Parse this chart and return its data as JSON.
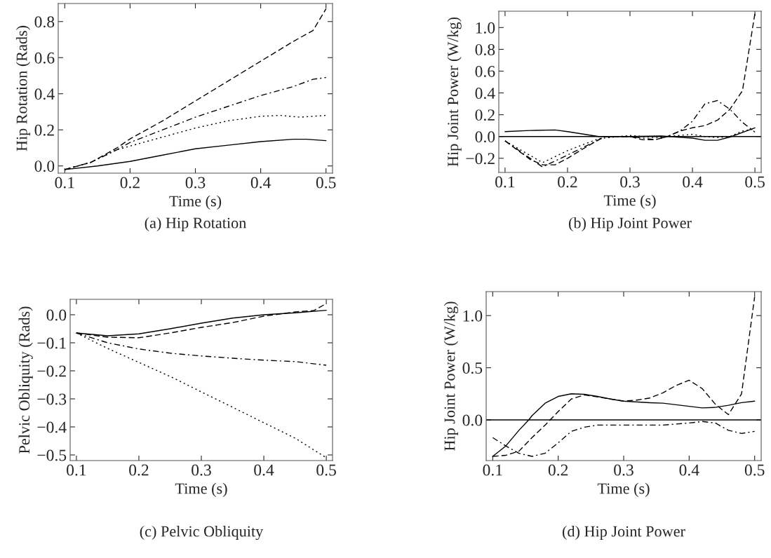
{
  "chart_data": [
    {
      "type": "line",
      "xlabel": "Time (s)",
      "ylabel": "Hip Rotation (Rads)",
      "annotations": [
        "(a) Hip Rotation"
      ],
      "xlim": [
        0.09,
        0.51
      ],
      "xticks": [
        0.1,
        0.2,
        0.3,
        0.4,
        0.5
      ],
      "ylim": [
        -0.04,
        0.9
      ],
      "yticks": [
        {
          "value": 0,
          "label": "0.0"
        },
        0.2,
        0.4,
        0.6,
        0.8
      ],
      "grid": false,
      "legend": false,
      "series": [
        {
          "color": "#000000",
          "line_style": "solid",
          "x": [
            0.1,
            0.15,
            0.2,
            0.25,
            0.3,
            0.35,
            0.4,
            0.45,
            0.47,
            0.5
          ],
          "values": [
            -0.02,
            0.0,
            0.025,
            0.06,
            0.095,
            0.115,
            0.135,
            0.148,
            0.148,
            0.14
          ]
        },
        {
          "color": "#000000",
          "line_style": "dashed",
          "x": [
            0.1,
            0.14,
            0.18,
            0.2,
            0.25,
            0.3,
            0.35,
            0.4,
            0.45,
            0.48,
            0.5
          ],
          "values": [
            -0.02,
            0.02,
            0.1,
            0.15,
            0.25,
            0.36,
            0.47,
            0.58,
            0.69,
            0.75,
            0.87
          ]
        },
        {
          "color": "#000000",
          "line_style": "dashdot",
          "x": [
            0.1,
            0.14,
            0.18,
            0.2,
            0.25,
            0.3,
            0.35,
            0.4,
            0.45,
            0.48,
            0.5
          ],
          "values": [
            -0.02,
            0.02,
            0.09,
            0.13,
            0.2,
            0.27,
            0.33,
            0.39,
            0.44,
            0.48,
            0.49
          ]
        },
        {
          "color": "#000000",
          "line_style": "dotted",
          "x": [
            0.1,
            0.14,
            0.18,
            0.2,
            0.25,
            0.3,
            0.35,
            0.4,
            0.43,
            0.46,
            0.5
          ],
          "values": [
            -0.02,
            0.02,
            0.09,
            0.11,
            0.16,
            0.21,
            0.25,
            0.275,
            0.28,
            0.27,
            0.28
          ]
        }
      ]
    },
    {
      "type": "line",
      "xlabel": "Time (s)",
      "ylabel": "Hip Joint Power (W/kg)",
      "annotations": [
        "(b) Hip Joint Power"
      ],
      "xlim": [
        0.09,
        0.51
      ],
      "xticks": [
        0.1,
        0.2,
        0.3,
        0.4,
        0.5
      ],
      "ylim": [
        -0.33,
        1.15
      ],
      "yticks": [
        {
          "value": -0.2,
          "label": "−0.2"
        },
        {
          "value": 0,
          "label": "0.0"
        },
        0.2,
        0.4,
        0.6,
        0.8,
        {
          "value": 1,
          "label": "1.0"
        }
      ],
      "grid": false,
      "legend": false,
      "ref_lines": [
        {
          "axis": "y",
          "value": 0.0,
          "color": "#000000",
          "line_style": "solid"
        }
      ],
      "series": [
        {
          "color": "#000000",
          "line_style": "solid",
          "x": [
            0.1,
            0.14,
            0.18,
            0.2,
            0.25,
            0.3,
            0.35,
            0.4,
            0.42,
            0.44,
            0.46,
            0.5
          ],
          "values": [
            0.045,
            0.055,
            0.06,
            0.045,
            0.0,
            0.0,
            0.005,
            -0.015,
            -0.035,
            -0.035,
            -0.005,
            0.08
          ]
        },
        {
          "color": "#000000",
          "line_style": "dashed",
          "x": [
            0.1,
            0.14,
            0.16,
            0.18,
            0.2,
            0.22,
            0.25,
            0.26,
            0.3,
            0.32,
            0.34,
            0.36,
            0.38,
            0.4,
            0.42,
            0.44,
            0.46,
            0.48,
            0.5
          ],
          "values": [
            -0.04,
            -0.21,
            -0.26,
            -0.26,
            -0.2,
            -0.13,
            -0.03,
            0.0,
            0.0,
            -0.03,
            -0.03,
            0.0,
            0.05,
            0.08,
            0.1,
            0.15,
            0.25,
            0.42,
            1.13
          ]
        },
        {
          "color": "#000000",
          "line_style": "dashdot",
          "x": [
            0.1,
            0.16,
            0.2,
            0.25,
            0.26,
            0.3,
            0.34,
            0.36,
            0.38,
            0.4,
            0.42,
            0.44,
            0.46,
            0.48,
            0.5
          ],
          "values": [
            -0.04,
            -0.28,
            -0.17,
            -0.03,
            0.0,
            0.0,
            -0.03,
            0.0,
            0.05,
            0.14,
            0.3,
            0.33,
            0.25,
            0.13,
            0.04
          ]
        },
        {
          "color": "#000000",
          "line_style": "dotted",
          "x": [
            0.1,
            0.16,
            0.2,
            0.25,
            0.3,
            0.34,
            0.36,
            0.4,
            0.42,
            0.44,
            0.46,
            0.48,
            0.5
          ],
          "values": [
            -0.04,
            -0.24,
            -0.13,
            -0.02,
            0.01,
            -0.01,
            0.0,
            0.02,
            0.0,
            -0.01,
            0.0,
            0.05,
            0.07
          ]
        }
      ]
    },
    {
      "type": "line",
      "xlabel": "Time (s)",
      "ylabel": "Pelvic Obliquity (Rads)",
      "annotations": [
        "(c) Pelvic Obliquity"
      ],
      "xlim": [
        0.09,
        0.51
      ],
      "xticks": [
        0.1,
        0.2,
        0.3,
        0.4,
        0.5
      ],
      "ylim": [
        -0.52,
        0.055
      ],
      "yticks": [
        {
          "value": -0.5,
          "label": "−0.5"
        },
        {
          "value": -0.4,
          "label": "−0.4"
        },
        {
          "value": -0.3,
          "label": "−0.3"
        },
        {
          "value": -0.2,
          "label": "−0.2"
        },
        {
          "value": -0.1,
          "label": "−0.1"
        },
        {
          "value": 0,
          "label": "0.0"
        }
      ],
      "grid": false,
      "legend": false,
      "series": [
        {
          "color": "#000000",
          "line_style": "solid",
          "x": [
            0.1,
            0.15,
            0.2,
            0.25,
            0.3,
            0.35,
            0.4,
            0.45,
            0.5
          ],
          "values": [
            -0.065,
            -0.075,
            -0.068,
            -0.05,
            -0.03,
            -0.012,
            0.0,
            0.007,
            0.016
          ]
        },
        {
          "color": "#000000",
          "line_style": "dashed",
          "x": [
            0.1,
            0.15,
            0.2,
            0.25,
            0.3,
            0.35,
            0.4,
            0.45,
            0.48,
            0.5
          ],
          "values": [
            -0.065,
            -0.08,
            -0.082,
            -0.065,
            -0.045,
            -0.028,
            -0.005,
            0.01,
            0.015,
            0.04
          ]
        },
        {
          "color": "#000000",
          "line_style": "dashdot",
          "x": [
            0.1,
            0.15,
            0.2,
            0.25,
            0.3,
            0.35,
            0.4,
            0.45,
            0.5
          ],
          "values": [
            -0.065,
            -0.1,
            -0.122,
            -0.137,
            -0.147,
            -0.155,
            -0.162,
            -0.167,
            -0.18
          ]
        },
        {
          "color": "#000000",
          "line_style": "dotted",
          "x": [
            0.1,
            0.15,
            0.2,
            0.25,
            0.3,
            0.35,
            0.4,
            0.45,
            0.5
          ],
          "values": [
            -0.065,
            -0.12,
            -0.17,
            -0.22,
            -0.275,
            -0.33,
            -0.385,
            -0.44,
            -0.51
          ]
        }
      ]
    },
    {
      "type": "line",
      "xlabel": "Time (s)",
      "ylabel": "Hip Joint Power (W/kg)",
      "annotations": [
        "(d) Hip Joint Power"
      ],
      "xlim": [
        0.09,
        0.51
      ],
      "xticks": [
        0.1,
        0.2,
        0.3,
        0.4,
        0.5
      ],
      "ylim": [
        -0.39,
        1.23
      ],
      "yticks": [
        {
          "value": 0,
          "label": "0.0"
        },
        0.5,
        {
          "value": 1,
          "label": "1.0"
        }
      ],
      "grid": false,
      "legend": false,
      "ref_lines": [
        {
          "axis": "y",
          "value": 0.0,
          "color": "#000000",
          "line_style": "solid"
        }
      ],
      "series": [
        {
          "color": "#000000",
          "line_style": "solid",
          "x": [
            0.1,
            0.12,
            0.14,
            0.155,
            0.16,
            0.18,
            0.2,
            0.22,
            0.24,
            0.26,
            0.28,
            0.3,
            0.34,
            0.36,
            0.4,
            0.42,
            0.44,
            0.46,
            0.48,
            0.5
          ],
          "values": [
            -0.35,
            -0.25,
            -0.1,
            0.0,
            0.04,
            0.16,
            0.225,
            0.25,
            0.245,
            0.225,
            0.2,
            0.18,
            0.165,
            0.16,
            0.13,
            0.115,
            0.12,
            0.14,
            0.165,
            0.18
          ]
        },
        {
          "color": "#000000",
          "line_style": "dashed",
          "x": [
            0.1,
            0.12,
            0.14,
            0.16,
            0.18,
            0.2,
            0.22,
            0.24,
            0.28,
            0.3,
            0.32,
            0.34,
            0.36,
            0.38,
            0.4,
            0.42,
            0.44,
            0.46,
            0.48,
            0.5
          ],
          "values": [
            -0.35,
            -0.34,
            -0.3,
            -0.17,
            -0.05,
            0.08,
            0.2,
            0.24,
            0.2,
            0.18,
            0.19,
            0.21,
            0.26,
            0.33,
            0.38,
            0.3,
            0.15,
            0.05,
            0.25,
            1.18
          ]
        },
        {
          "color": "#000000",
          "line_style": "dashdot",
          "x": [
            0.1,
            0.12,
            0.14,
            0.16,
            0.18,
            0.2,
            0.22,
            0.24,
            0.26,
            0.3,
            0.36,
            0.4,
            0.42,
            0.44,
            0.46,
            0.48,
            0.5
          ],
          "values": [
            -0.17,
            -0.25,
            -0.32,
            -0.35,
            -0.32,
            -0.22,
            -0.11,
            -0.07,
            -0.05,
            -0.05,
            -0.05,
            -0.03,
            -0.015,
            -0.03,
            -0.1,
            -0.13,
            -0.11
          ]
        }
      ]
    }
  ]
}
